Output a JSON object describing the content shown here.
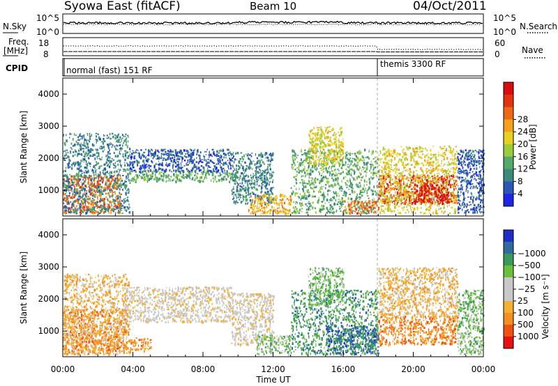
{
  "header": {
    "station": "Syowa East (fitACF)",
    "beam": "Beam 10",
    "date": "04/Oct/2011"
  },
  "strip_noise": {
    "left_label": "N.Sky",
    "left_ticks": [
      "10^5",
      "10^0"
    ],
    "right_label": "N.Search",
    "right_ticks": [
      "10^5",
      "10^0"
    ]
  },
  "strip_freq": {
    "left_label_1": "Freq.",
    "left_label_2": "[MHz]",
    "left_ticks": [
      "18",
      "8"
    ],
    "right_label": "Nave",
    "right_ticks": [
      "60",
      "0"
    ]
  },
  "strip_cpid": {
    "label": "CPID",
    "mode_1": "normal (fast) 151 RF",
    "mode_2": "themis 3300 RF"
  },
  "chart_data": [
    {
      "type": "heatmap",
      "name": "power",
      "ylabel": "Slant Range [km]",
      "xlabel": "",
      "x_ticks": [
        "00:00",
        "04:00",
        "08:00",
        "12:00",
        "16:00",
        "20:00",
        "00:00"
      ],
      "x_range_hours": [
        0,
        24
      ],
      "y_ticks": [
        1000,
        2000,
        3000,
        4000
      ],
      "ylim": [
        200,
        4500
      ],
      "colorbar_label": "Power [dB]",
      "colorbar_ticks": [
        4,
        8,
        12,
        16,
        20,
        24,
        28
      ],
      "colorbar_colors": [
        "#1f25e6",
        "#2a58b4",
        "#3b8a7e",
        "#55a86a",
        "#9ccc3c",
        "#e6d21e",
        "#f5a01e",
        "#ee6a12",
        "#e33210",
        "#d90d0d"
      ],
      "scatter_regions": [
        {
          "t0": 0.0,
          "t1": 3.3,
          "r0": 300,
          "r1": 1500,
          "level": 7
        },
        {
          "t0": 0.0,
          "t1": 3.8,
          "r0": 300,
          "r1": 2800,
          "level": 2
        },
        {
          "t0": 3.8,
          "t1": 9.6,
          "r0": 1300,
          "r1": 1650,
          "level": 3
        },
        {
          "t0": 3.8,
          "t1": 9.6,
          "r0": 1600,
          "r1": 2300,
          "level": 1
        },
        {
          "t0": 9.6,
          "t1": 12.0,
          "r0": 600,
          "r1": 2200,
          "level": 2
        },
        {
          "t0": 10.5,
          "t1": 13.0,
          "r0": 300,
          "r1": 900,
          "level": 6
        },
        {
          "t0": 13.0,
          "t1": 18.0,
          "r0": 300,
          "r1": 2300,
          "level": 3
        },
        {
          "t0": 14.0,
          "t1": 16.0,
          "r0": 1800,
          "r1": 3000,
          "level": 5
        },
        {
          "t0": 16.0,
          "t1": 18.0,
          "r0": 300,
          "r1": 700,
          "level": 7
        },
        {
          "t0": 18.0,
          "t1": 22.5,
          "r0": 600,
          "r1": 1500,
          "level": 8
        },
        {
          "t0": 18.0,
          "t1": 22.5,
          "r0": 300,
          "r1": 2400,
          "level": 5
        },
        {
          "t0": 20.0,
          "t1": 22.0,
          "r0": 600,
          "r1": 1200,
          "level": 9
        },
        {
          "t0": 22.5,
          "t1": 24.0,
          "r0": 300,
          "r1": 2300,
          "level": 1
        }
      ]
    },
    {
      "type": "heatmap",
      "name": "velocity",
      "ylabel": "Slant Range [km]",
      "xlabel": "Time UT",
      "x_ticks": [
        "00:00",
        "04:00",
        "08:00",
        "12:00",
        "16:00",
        "20:00",
        "00:00"
      ],
      "x_range_hours": [
        0,
        24
      ],
      "y_ticks": [
        1000,
        2000,
        3000,
        4000
      ],
      "ylim": [
        200,
        4500
      ],
      "colorbar_label": "Velocity [m s⁻¹]",
      "colorbar_ticks": [
        "1000",
        "500",
        "100",
        "25",
        "−25",
        "−100",
        "−500",
        "−1000"
      ],
      "colorbar_colors": [
        "#e61010",
        "#f05010",
        "#f59020",
        "#f6b030",
        "#c8c8c8",
        "#c8c8c8",
        "#6ac03a",
        "#3a9a5a",
        "#2f6aa0",
        "#1f2ec8"
      ],
      "scatter_regions": [
        {
          "t0": 0.0,
          "t1": 3.6,
          "r0": 300,
          "r1": 1700,
          "level": 2
        },
        {
          "t0": 0.0,
          "t1": 3.8,
          "r0": 300,
          "r1": 2800,
          "level": 3
        },
        {
          "t0": 3.5,
          "t1": 9.6,
          "r0": 1300,
          "r1": 2400,
          "level": 4
        },
        {
          "t0": 3.8,
          "t1": 5.0,
          "r0": 400,
          "r1": 800,
          "level": 2
        },
        {
          "t0": 9.6,
          "t1": 12.0,
          "r0": 600,
          "r1": 2200,
          "level": 4
        },
        {
          "t0": 11.0,
          "t1": 13.0,
          "r0": 300,
          "r1": 900,
          "level": 6
        },
        {
          "t0": 13.0,
          "t1": 18.0,
          "r0": 300,
          "r1": 2300,
          "level": 7
        },
        {
          "t0": 14.0,
          "t1": 16.0,
          "r0": 1800,
          "r1": 3000,
          "level": 6
        },
        {
          "t0": 15.0,
          "t1": 18.0,
          "r0": 300,
          "r1": 1200,
          "level": 8
        },
        {
          "t0": 18.0,
          "t1": 22.5,
          "r0": 600,
          "r1": 1500,
          "level": 2
        },
        {
          "t0": 18.0,
          "t1": 22.5,
          "r0": 1500,
          "r1": 3000,
          "level": 3
        },
        {
          "t0": 22.5,
          "t1": 24.0,
          "r0": 300,
          "r1": 2300,
          "level": 6
        }
      ]
    }
  ]
}
